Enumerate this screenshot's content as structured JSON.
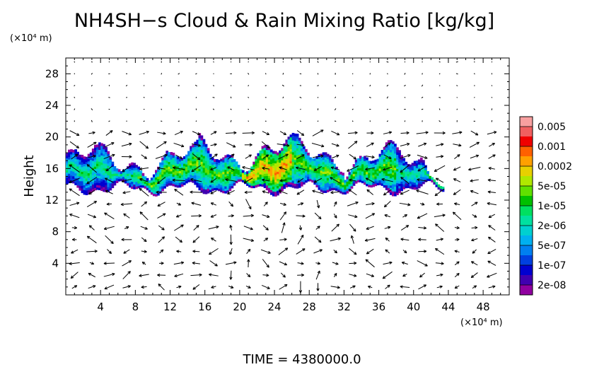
{
  "chart_data": {
    "type": "heatmap",
    "title": "NH4SH−s Cloud & Rain Mixing Ratio [kg/kg]",
    "ylabel": "Height",
    "y_unit": "(×10⁴ m)",
    "x_unit": "(×10⁴ m)",
    "xlim": [
      0,
      51
    ],
    "ylim": [
      0,
      30
    ],
    "x_ticks": [
      "4",
      "8",
      "12",
      "16",
      "20",
      "24",
      "28",
      "32",
      "36",
      "40",
      "44",
      "48"
    ],
    "y_ticks": [
      "4",
      "8",
      "12",
      "16",
      "20",
      "24",
      "28"
    ],
    "colorbar_labels": [
      "0.005",
      "0.001",
      "0.0002",
      "5e-05",
      "1e-05",
      "2e-06",
      "5e-07",
      "1e-07",
      "2e-08"
    ],
    "colorbar_colors": [
      "#f8a0a0",
      "#f06060",
      "#f00000",
      "#ff6000",
      "#ffa000",
      "#e8d000",
      "#b0e800",
      "#60e000",
      "#00c000",
      "#00e060",
      "#00e0a0",
      "#00d0d0",
      "#00b0f0",
      "#0080f0",
      "#0040e0",
      "#0000d0",
      "#4000b0",
      "#9000a0"
    ],
    "cloud_layer": {
      "z_bottom_approx": 13.5,
      "z_top_approx": 18.5,
      "x_start_approx": 0,
      "x_end_approx": 43.5,
      "max_region_x": [
        20,
        26
      ],
      "max_value_approx": "0.0002"
    },
    "vector_field": "wind vectors plotted over domain",
    "grid": false,
    "time_label": "TIME  =  4380000.0"
  }
}
